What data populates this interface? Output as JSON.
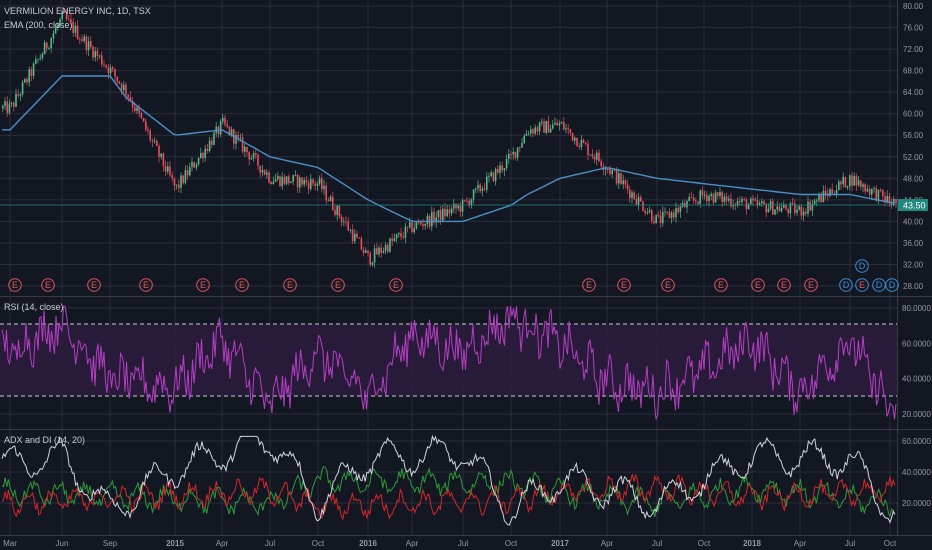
{
  "colors": {
    "background": "#131722",
    "grid": "#2a2e39",
    "candle_up": "#53b987",
    "candle_down": "#eb4d5c",
    "ema": "#4a90c8",
    "rsi": "#b43fc3",
    "rsi_band": "#3a1f4a",
    "adx": "#d1d4dc",
    "di_plus": "#2e9a3a",
    "di_minus": "#d4262a",
    "earnings": "#e0545f",
    "dividend": "#3a8fd8",
    "price_tag": "#1f8a80"
  },
  "panes": {
    "price": {
      "title": "VERMILION ENERGY INC, 1D, TSX",
      "indicator": "EMA (200, close)",
      "last_price": "43.50",
      "y_ticks": [
        "80.00",
        "76.00",
        "72.00",
        "68.00",
        "64.00",
        "60.00",
        "56.00",
        "52.00",
        "48.00",
        "44.00",
        "40.00",
        "36.00",
        "32.00",
        "28.00"
      ],
      "earnings_marker": "E",
      "dividend_marker": "D"
    },
    "rsi": {
      "title": "RSI (14, close)",
      "y_ticks": [
        "80.0000",
        "60.0000",
        "40.0000",
        "20.0000"
      ],
      "band": [
        30,
        70
      ]
    },
    "adx": {
      "title": "ADX and DI (14, 20)",
      "y_ticks": [
        "60.0000",
        "40.0000",
        "20.0000"
      ]
    }
  },
  "x_axis": {
    "labels": [
      "Mar",
      "Jun",
      "Sep",
      "2015",
      "Apr",
      "Jul",
      "Oct",
      "2016",
      "Apr",
      "Jul",
      "Oct",
      "2017",
      "Apr",
      "Jul",
      "Oct",
      "2018",
      "Apr",
      "Jul",
      "Oct"
    ]
  },
  "chart_data": [
    {
      "type": "candlestick",
      "title": "VERMILION ENERGY INC, 1D, TSX",
      "ylim": [
        28,
        80
      ],
      "keypoints_x": [
        "Mar 2014",
        "Jun 2014",
        "Sep 2014",
        "Oct 2014",
        "2015",
        "Apr 2015",
        "Jul 2015",
        "Oct 2015",
        "2016",
        "Apr 2016",
        "Jul 2016",
        "Oct 2016",
        "Nov 2016",
        "2017",
        "Apr 2017",
        "Jul 2017",
        "Oct 2017",
        "2018",
        "Apr 2018",
        "Jul 2018",
        "Oct 2018"
      ],
      "close": [
        61,
        78,
        68,
        64,
        46,
        58,
        48,
        47,
        33,
        39,
        43,
        52,
        57,
        58,
        50,
        40,
        45,
        43,
        42,
        48,
        43.5
      ],
      "series": [
        {
          "name": "EMA (200, close)",
          "values": [
            57,
            67,
            67,
            63,
            56,
            57,
            52,
            50,
            44,
            40,
            40,
            43,
            45,
            48,
            50,
            48,
            47,
            46,
            45,
            45,
            43.5
          ]
        }
      ]
    },
    {
      "type": "line",
      "title": "RSI (14, close)",
      "ylim": [
        15,
        85
      ],
      "band": [
        30,
        70
      ],
      "keypoints_x": [
        "Mar 2014",
        "Jun 2014",
        "Sep 2014",
        "2015",
        "Apr 2015",
        "Jul 2015",
        "Oct 2015",
        "2016",
        "Apr 2016",
        "Jul 2016",
        "Oct 2016",
        "2017",
        "Apr 2017",
        "Jul 2017",
        "Oct 2017",
        "2018",
        "Apr 2018",
        "Jul 2018",
        "Oct 2018"
      ],
      "values": [
        55,
        72,
        40,
        35,
        62,
        25,
        55,
        30,
        65,
        55,
        75,
        60,
        38,
        33,
        45,
        62,
        32,
        62,
        22
      ]
    },
    {
      "type": "line",
      "title": "ADX and DI (14, 20)",
      "ylim": [
        5,
        65
      ],
      "series": [
        {
          "name": "ADX",
          "keypoints_x": [
            "Mar 2014",
            "Jun 2014",
            "Sep 2014",
            "2015",
            "Jul 2015",
            "Oct 2015",
            "2016",
            "Jul 2016",
            "Oct 2016",
            "2017",
            "Jul 2017",
            "2018",
            "Jul 2018",
            "Oct 2018"
          ],
          "values": [
            45,
            50,
            15,
            42,
            62,
            20,
            48,
            53,
            15,
            35,
            20,
            50,
            48,
            15
          ]
        },
        {
          "name": "+DI",
          "keypoints_x": [
            "Mar 2014",
            "Jul 2015",
            "Oct 2015",
            "Oct 2016",
            "2017",
            "Jul 2017",
            "2018",
            "Oct 2018"
          ],
          "values": [
            27,
            20,
            34,
            33,
            27,
            20,
            30,
            20
          ]
        },
        {
          "name": "-DI",
          "keypoints_x": [
            "Mar 2014",
            "Jul 2015",
            "Oct 2015",
            "Oct 2016",
            "2017",
            "Jul 2017",
            "2018",
            "Oct 2018"
          ],
          "values": [
            20,
            28,
            18,
            22,
            27,
            30,
            24,
            28
          ]
        }
      ]
    }
  ]
}
